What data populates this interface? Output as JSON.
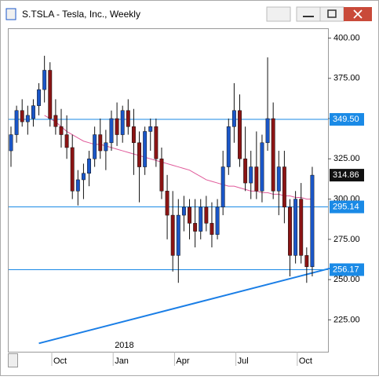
{
  "window_title": "S.TSLA - Tesla, Inc., Weekly",
  "chart_data": {
    "type": "candlestick",
    "categories": [
      null,
      null,
      null,
      null,
      null,
      null,
      null,
      null,
      null,
      "Oct",
      null,
      null,
      null,
      null,
      null,
      null,
      null,
      null,
      null,
      null,
      "Jan",
      null,
      null,
      null,
      null,
      null,
      null,
      null,
      null,
      null,
      null,
      "Apr",
      null,
      null,
      null,
      null,
      null,
      null,
      null,
      null,
      null,
      null,
      "Jul",
      null,
      null,
      null,
      null,
      null,
      null,
      null,
      null,
      null,
      null,
      "Oct",
      null
    ],
    "year_label": "2018",
    "open": [
      330,
      340,
      355,
      348,
      350,
      358,
      368,
      380,
      352,
      345,
      340,
      332,
      305,
      312,
      316,
      325,
      340,
      330,
      335,
      350,
      340,
      355,
      345,
      335,
      320,
      342,
      345,
      325,
      305,
      290,
      265,
      290,
      295,
      285,
      280,
      295,
      285,
      278,
      295,
      320,
      345,
      355,
      325,
      310,
      320,
      305,
      335,
      350,
      305,
      320,
      295,
      265,
      300,
      265,
      258
    ],
    "high": [
      345,
      358,
      362,
      358,
      362,
      372,
      389,
      385,
      362,
      356,
      352,
      340,
      318,
      322,
      330,
      345,
      350,
      343,
      355,
      360,
      358,
      362,
      356,
      342,
      345,
      350,
      350,
      332,
      315,
      305,
      300,
      302,
      300,
      300,
      300,
      302,
      298,
      300,
      330,
      350,
      372,
      365,
      345,
      330,
      342,
      340,
      388,
      360,
      330,
      330,
      300,
      305,
      310,
      270,
      320
    ],
    "low": [
      320,
      335,
      345,
      340,
      345,
      352,
      360,
      345,
      340,
      332,
      325,
      300,
      296,
      300,
      308,
      320,
      325,
      318,
      330,
      333,
      335,
      340,
      315,
      298,
      315,
      330,
      320,
      300,
      275,
      255,
      248,
      280,
      275,
      270,
      275,
      280,
      270,
      275,
      290,
      315,
      335,
      320,
      305,
      300,
      300,
      298,
      330,
      300,
      290,
      285,
      252,
      260,
      260,
      248,
      252
    ],
    "close": [
      340,
      355,
      348,
      352,
      358,
      368,
      380,
      350,
      345,
      340,
      332,
      305,
      312,
      316,
      325,
      340,
      330,
      335,
      350,
      340,
      355,
      345,
      335,
      320,
      342,
      345,
      325,
      305,
      290,
      265,
      290,
      295,
      285,
      280,
      295,
      285,
      278,
      295,
      320,
      345,
      355,
      325,
      310,
      320,
      305,
      335,
      350,
      305,
      320,
      295,
      265,
      300,
      265,
      258,
      314.86
    ],
    "up_color": "#1a56c8",
    "down_color": "#8b1414",
    "moving_average": {
      "color": "#e05a9a",
      "values": [
        null,
        null,
        null,
        null,
        null,
        null,
        352,
        350,
        348,
        345,
        342,
        340,
        338,
        336,
        335,
        334,
        334,
        333,
        332,
        331,
        330,
        329,
        328,
        327,
        326,
        325,
        324,
        323,
        322,
        321,
        320,
        319,
        318,
        316,
        314,
        312,
        311,
        310,
        309,
        308,
        308,
        307,
        306,
        305,
        305,
        304,
        304,
        303,
        303,
        302,
        302,
        301,
        301,
        300,
        300
      ]
    },
    "levels": [
      {
        "value": 349.5,
        "label": "349.50"
      },
      {
        "value": 295.14,
        "label": "295.14"
      },
      {
        "value": 256.17,
        "label": "256.17"
      }
    ],
    "level_color": "#1a8ae6",
    "last_price": 314.86,
    "trendline": {
      "color": "#1a7ee6",
      "points": [
        {
          "index": 5,
          "value": 210.4
        },
        {
          "index": 57.1,
          "value": 256.9
        }
      ]
    },
    "ylim": [
      205.2,
      405.6
    ],
    "yticks": [
      {
        "value": 225,
        "label": "225.00"
      },
      {
        "value": 250,
        "label": "250.00"
      },
      {
        "value": 275,
        "label": "275.00"
      },
      {
        "value": 300,
        "label": "300.00"
      },
      {
        "value": 325,
        "label": "325.00"
      },
      {
        "value": 350,
        "label": "350.00"
      },
      {
        "value": 375,
        "label": "375.00"
      },
      {
        "value": 400,
        "label": "400.00"
      }
    ]
  }
}
